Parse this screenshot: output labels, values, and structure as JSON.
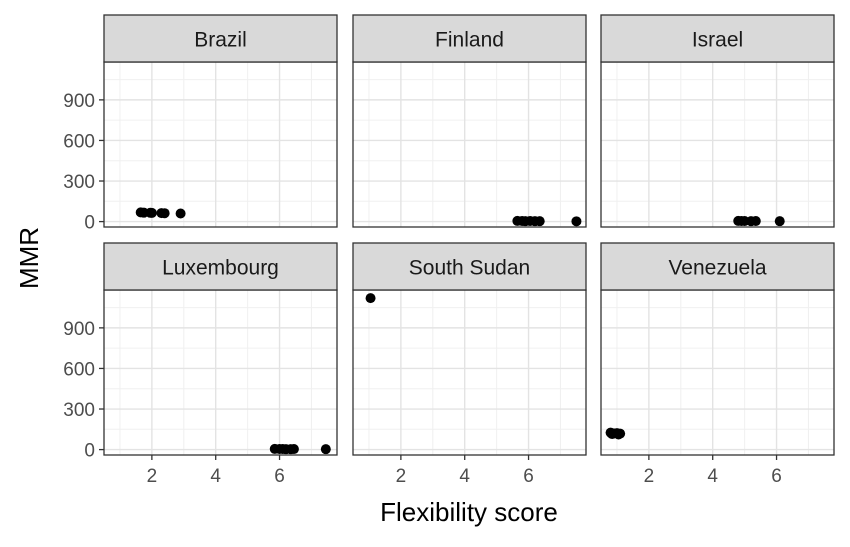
{
  "chart_data": {
    "type": "scatter",
    "xlabel": "Flexibility score",
    "ylabel": "MMR",
    "xlim": [
      0.5,
      7.8
    ],
    "ylim": [
      -40,
      1180
    ],
    "x_ticks": [
      2,
      4,
      6
    ],
    "y_ticks": [
      0,
      300,
      600,
      900
    ],
    "x_tick_labels": [
      "2",
      "4",
      "6"
    ],
    "y_tick_labels": [
      "0",
      "300",
      "600",
      "900"
    ],
    "grid": true,
    "legend": "none",
    "panels": [
      {
        "name": "Brazil",
        "points": [
          [
            1.65,
            68
          ],
          [
            1.75,
            66
          ],
          [
            1.95,
            65
          ],
          [
            2.0,
            64
          ],
          [
            2.3,
            63
          ],
          [
            2.4,
            62
          ],
          [
            2.9,
            60
          ]
        ]
      },
      {
        "name": "Finland",
        "points": [
          [
            5.65,
            5
          ],
          [
            5.8,
            4
          ],
          [
            5.9,
            3
          ],
          [
            6.05,
            4
          ],
          [
            6.2,
            3
          ],
          [
            6.35,
            3
          ],
          [
            7.5,
            2
          ]
        ]
      },
      {
        "name": "Israel",
        "points": [
          [
            4.8,
            5
          ],
          [
            4.9,
            4
          ],
          [
            5.0,
            4
          ],
          [
            5.2,
            3
          ],
          [
            5.35,
            4
          ],
          [
            6.1,
            3
          ]
        ]
      },
      {
        "name": "Luxembourg",
        "points": [
          [
            5.85,
            5
          ],
          [
            6.0,
            4
          ],
          [
            6.1,
            4
          ],
          [
            6.2,
            3
          ],
          [
            6.35,
            3
          ],
          [
            6.45,
            4
          ],
          [
            7.45,
            3
          ]
        ]
      },
      {
        "name": "South Sudan",
        "points": [
          [
            1.05,
            1120
          ]
        ]
      },
      {
        "name": "Venezuela",
        "points": [
          [
            0.8,
            125
          ],
          [
            0.9,
            120
          ],
          [
            1.0,
            122
          ],
          [
            1.1,
            118
          ],
          [
            0.85,
            115
          ],
          [
            1.05,
            112
          ]
        ]
      }
    ]
  }
}
